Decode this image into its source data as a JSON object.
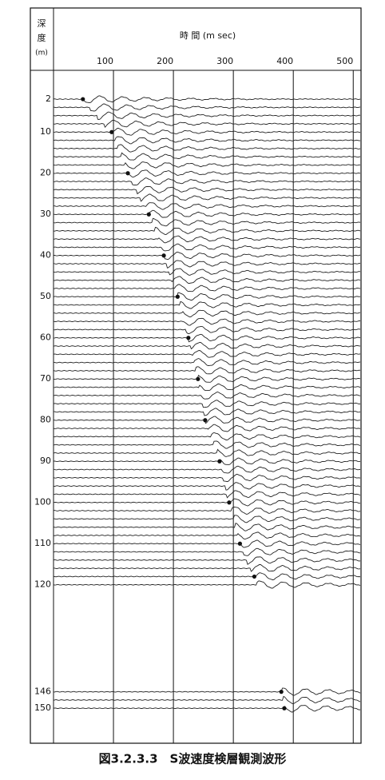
{
  "chart_data": {
    "type": "scatter",
    "title": "図3.2.3.3　S波速度検層観測波形",
    "x_label": "時 間 (m sec)",
    "y_label": [
      "深",
      "度",
      "(m)"
    ],
    "x": [
      49,
      97,
      124,
      159,
      184,
      207,
      225,
      241,
      253,
      277,
      293,
      311,
      335,
      380,
      385
    ],
    "values": [
      2,
      10,
      20,
      30,
      40,
      50,
      60,
      70,
      80,
      90,
      100,
      110,
      118,
      146,
      150
    ],
    "color": "#111111",
    "xlim": [
      0,
      513
    ],
    "xticks": [
      100,
      200,
      300,
      400,
      500
    ],
    "ylim": [
      -5,
      158.5
    ],
    "y_inverted": true,
    "yticks": [
      2,
      10,
      20,
      30,
      40,
      50,
      60,
      70,
      80,
      90,
      100,
      110,
      120,
      146,
      150
    ],
    "grid": true
  }
}
